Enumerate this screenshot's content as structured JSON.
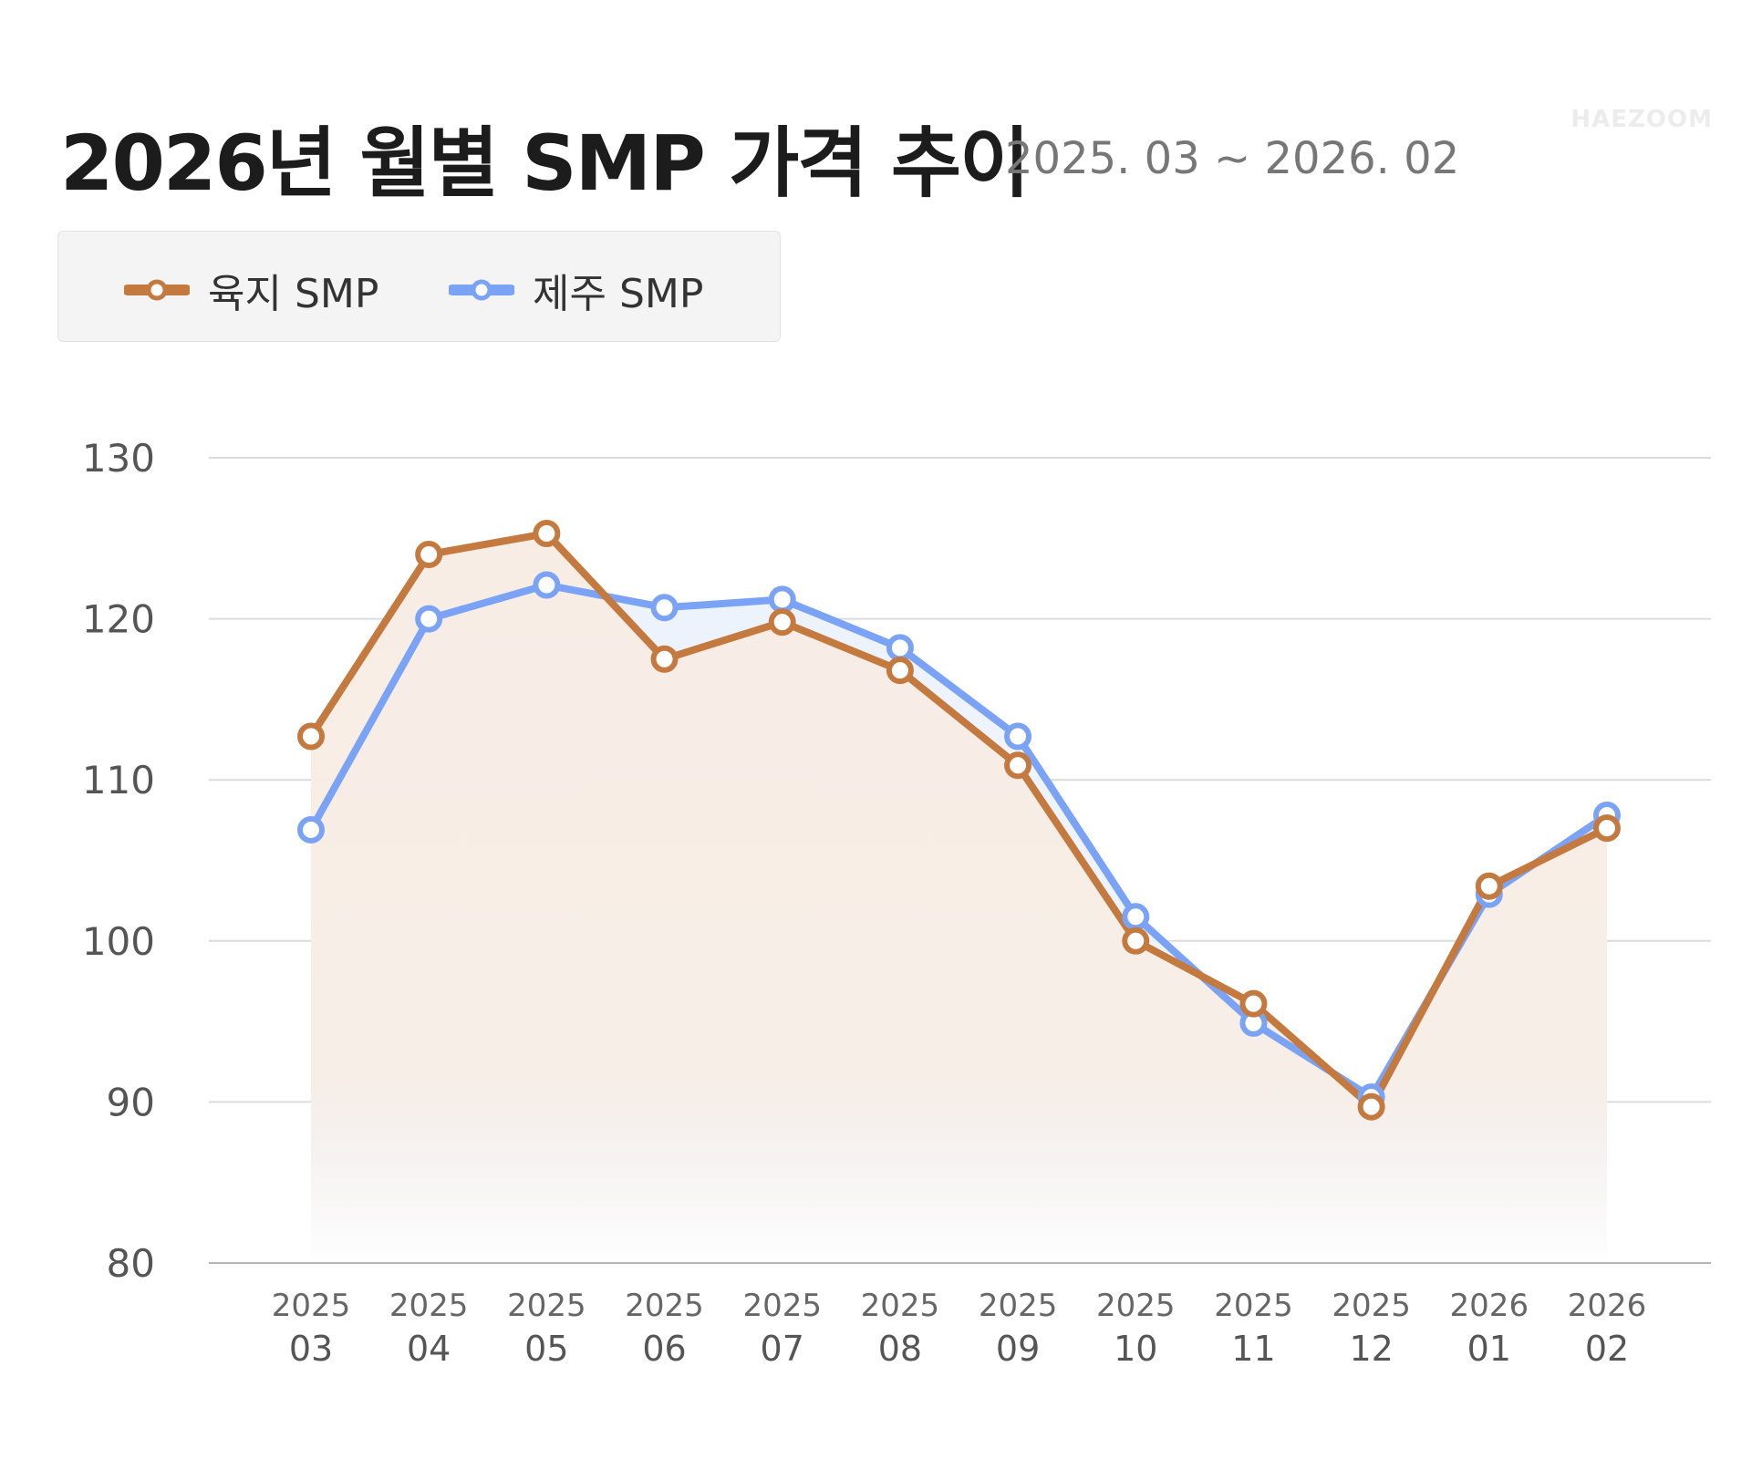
{
  "header": {
    "title": "2026년 월별 SMP 가격 추이",
    "subtitle": "2025. 03 ~ 2026. 02",
    "watermark": "HAEZOOM"
  },
  "chart_data": {
    "type": "line",
    "title": "2026년 월별 SMP 가격 추이",
    "subtitle": "2025. 03 ~ 2026. 02",
    "categories": [
      [
        "2025",
        "03"
      ],
      [
        "2025",
        "04"
      ],
      [
        "2025",
        "05"
      ],
      [
        "2025",
        "06"
      ],
      [
        "2025",
        "07"
      ],
      [
        "2025",
        "08"
      ],
      [
        "2025",
        "09"
      ],
      [
        "2025",
        "10"
      ],
      [
        "2025",
        "11"
      ],
      [
        "2025",
        "12"
      ],
      [
        "2026",
        "01"
      ],
      [
        "2026",
        "02"
      ]
    ],
    "ylim": [
      80,
      130
    ],
    "yticks": [
      80,
      90,
      100,
      110,
      120,
      130
    ],
    "grid": true,
    "legend_placement": "top-left",
    "series": [
      {
        "name": "육지 SMP",
        "color": "#c47a3e",
        "fill": "#f8ede5",
        "values": [
          112.7,
          124.0,
          125.3,
          117.5,
          119.8,
          116.8,
          110.9,
          100.0,
          96.1,
          89.7,
          103.4,
          107.0
        ]
      },
      {
        "name": "제주 SMP",
        "color": "#7aa2f5",
        "fill": "#edf3fd",
        "values": [
          106.9,
          120.0,
          122.1,
          120.7,
          121.2,
          118.2,
          112.7,
          101.5,
          94.9,
          90.3,
          102.9,
          107.8
        ]
      }
    ]
  }
}
